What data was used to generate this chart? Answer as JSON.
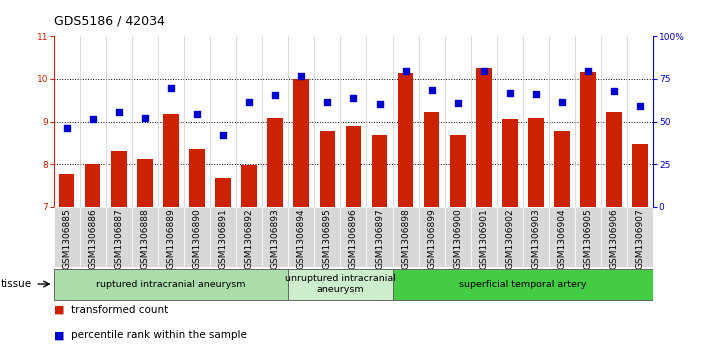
{
  "title": "GDS5186 / 42034",
  "samples": [
    "GSM1306885",
    "GSM1306886",
    "GSM1306887",
    "GSM1306888",
    "GSM1306889",
    "GSM1306890",
    "GSM1306891",
    "GSM1306892",
    "GSM1306893",
    "GSM1306894",
    "GSM1306895",
    "GSM1306896",
    "GSM1306897",
    "GSM1306898",
    "GSM1306899",
    "GSM1306900",
    "GSM1306901",
    "GSM1306902",
    "GSM1306903",
    "GSM1306904",
    "GSM1306905",
    "GSM1306906",
    "GSM1306907"
  ],
  "bar_values": [
    7.78,
    8.01,
    8.3,
    8.12,
    9.18,
    8.35,
    7.68,
    7.99,
    9.08,
    9.99,
    8.78,
    8.9,
    8.68,
    10.15,
    9.22,
    8.68,
    10.25,
    9.05,
    9.08,
    8.78,
    10.17,
    9.23,
    8.47
  ],
  "dot_values": [
    8.85,
    9.07,
    9.22,
    9.08,
    9.78,
    9.18,
    8.68,
    9.47,
    9.62,
    10.07,
    9.45,
    9.55,
    9.42,
    10.18,
    9.73,
    9.43,
    10.18,
    9.68,
    9.65,
    9.45,
    10.18,
    9.72,
    9.37
  ],
  "groups": [
    {
      "label": "ruptured intracranial aneurysm",
      "start": 0,
      "end": 9,
      "color": "#aaddaa"
    },
    {
      "label": "unruptured intracranial\naneurysm",
      "start": 9,
      "end": 13,
      "color": "#cceecc"
    },
    {
      "label": "superficial temporal artery",
      "start": 13,
      "end": 23,
      "color": "#44cc44"
    }
  ],
  "ylim": [
    7,
    11
  ],
  "yticks_left": [
    7,
    8,
    9,
    10,
    11
  ],
  "yticks_right_labels": [
    "0",
    "25",
    "50",
    "75",
    "100%"
  ],
  "bar_color": "#cc2200",
  "dot_color": "#0000cc",
  "fig_bg": "#ffffff",
  "plot_bg": "#ffffff",
  "xtick_bg": "#d8d8d8",
  "title_fontsize": 9,
  "tick_fontsize": 6.5,
  "legend_fontsize": 7.5
}
